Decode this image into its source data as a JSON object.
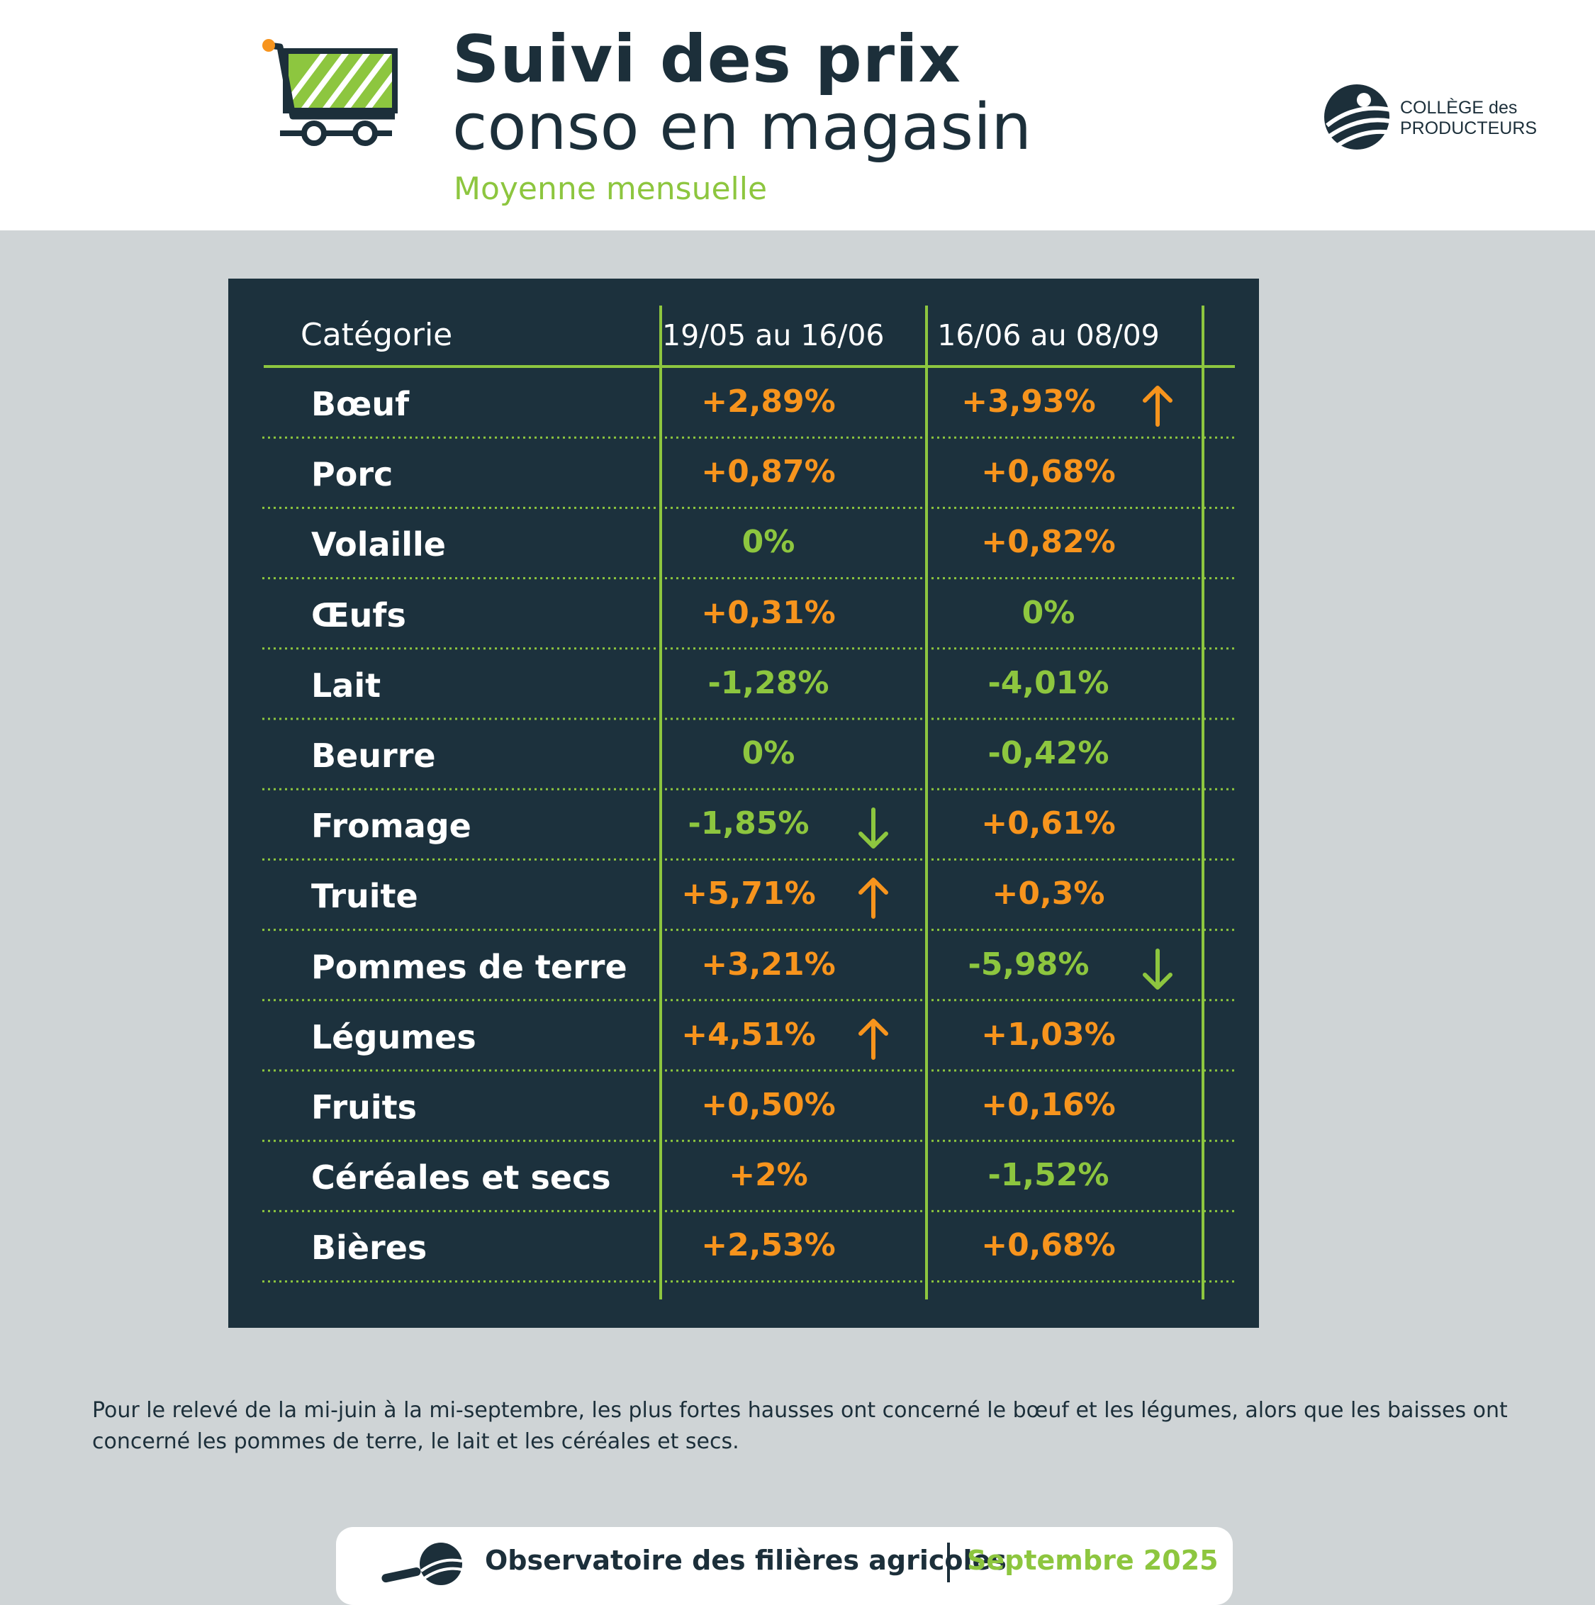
{
  "header": {
    "title_line1": "Suivi des prix",
    "title_line2": "conso en magasin",
    "subtitle": "Moyenne mensuelle",
    "logo_line1": "COLLÈGE des",
    "logo_line2": "PRODUCTEURS"
  },
  "colors": {
    "dark": "#1c313d",
    "increase": "#f7941d",
    "decrease_or_stable": "#8dc63f",
    "background": "#cfd4d6"
  },
  "table": {
    "headers": [
      "Catégorie",
      "19/05 au 16/06",
      "16/06 au 08/09"
    ],
    "rows": [
      {
        "category": "Bœuf",
        "p1": "+2,89%",
        "p1_trend": "up",
        "p1_arrow": false,
        "p2": "+3,93%",
        "p2_trend": "up",
        "p2_arrow": true
      },
      {
        "category": "Porc",
        "p1": "+0,87%",
        "p1_trend": "up",
        "p1_arrow": false,
        "p2": "+0,68%",
        "p2_trend": "up",
        "p2_arrow": false
      },
      {
        "category": "Volaille",
        "p1": "0%",
        "p1_trend": "down",
        "p1_arrow": false,
        "p2": "+0,82%",
        "p2_trend": "up",
        "p2_arrow": false
      },
      {
        "category": "Œufs",
        "p1": "+0,31%",
        "p1_trend": "up",
        "p1_arrow": false,
        "p2": "0%",
        "p2_trend": "down",
        "p2_arrow": false
      },
      {
        "category": "Lait",
        "p1": "-1,28%",
        "p1_trend": "down",
        "p1_arrow": false,
        "p2": "-4,01%",
        "p2_trend": "down",
        "p2_arrow": false
      },
      {
        "category": "Beurre",
        "p1": "0%",
        "p1_trend": "down",
        "p1_arrow": false,
        "p2": "-0,42%",
        "p2_trend": "down",
        "p2_arrow": false
      },
      {
        "category": "Fromage",
        "p1": "-1,85%",
        "p1_trend": "down",
        "p1_arrow": true,
        "p2": "+0,61%",
        "p2_trend": "up",
        "p2_arrow": false
      },
      {
        "category": "Truite",
        "p1": "+5,71%",
        "p1_trend": "up",
        "p1_arrow": true,
        "p2": "+0,3%",
        "p2_trend": "up",
        "p2_arrow": false
      },
      {
        "category": "Pommes de terre",
        "p1": "+3,21%",
        "p1_trend": "up",
        "p1_arrow": false,
        "p2": "-5,98%",
        "p2_trend": "down",
        "p2_arrow": true
      },
      {
        "category": "Légumes",
        "p1": "+4,51%",
        "p1_trend": "up",
        "p1_arrow": true,
        "p2": "+1,03%",
        "p2_trend": "up",
        "p2_arrow": false
      },
      {
        "category": "Fruits",
        "p1": "+0,50%",
        "p1_trend": "up",
        "p1_arrow": false,
        "p2": "+0,16%",
        "p2_trend": "up",
        "p2_arrow": false
      },
      {
        "category": "Céréales et secs",
        "p1": "+2%",
        "p1_trend": "up",
        "p1_arrow": false,
        "p2": "-1,52%",
        "p2_trend": "down",
        "p2_arrow": false
      },
      {
        "category": "Bières",
        "p1": "+2,53%",
        "p1_trend": "up",
        "p1_arrow": false,
        "p2": "+0,68%",
        "p2_trend": "up",
        "p2_arrow": false
      }
    ]
  },
  "note": "Pour le relevé de la mi-juin à la mi-septembre, les plus fortes hausses ont concerné le bœuf et les légumes, alors que les baisses ont concerné les pommes de terre, le lait et les céréales et secs.",
  "footer": {
    "text": "Observatoire des filières agricoles",
    "date": "Septembre 2025"
  }
}
